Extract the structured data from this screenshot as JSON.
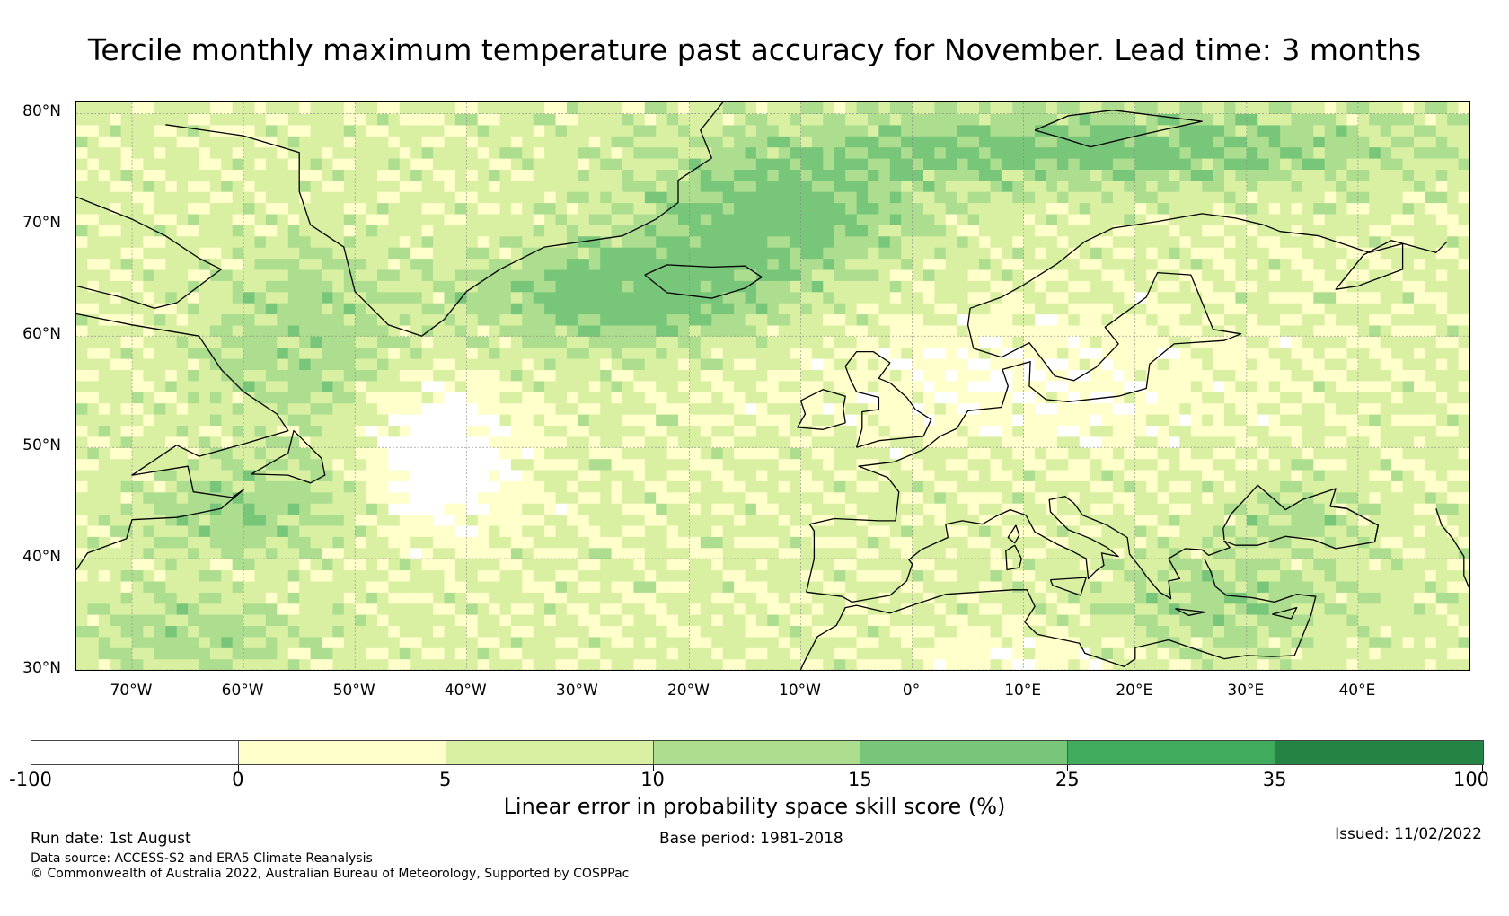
{
  "title": "Tercile monthly maximum temperature past accuracy for November. Lead time: 3 months",
  "map": {
    "lat_labels": [
      {
        "text": "80°N",
        "lat": 80
      },
      {
        "text": "70°N",
        "lat": 70
      },
      {
        "text": "60°N",
        "lat": 60
      },
      {
        "text": "50°N",
        "lat": 50
      },
      {
        "text": "40°N",
        "lat": 40
      },
      {
        "text": "30°N",
        "lat": 30
      }
    ],
    "lon_labels": [
      {
        "text": "70°W",
        "lon": -70
      },
      {
        "text": "60°W",
        "lon": -60
      },
      {
        "text": "50°W",
        "lon": -50
      },
      {
        "text": "40°W",
        "lon": -40
      },
      {
        "text": "30°W",
        "lon": -30
      },
      {
        "text": "20°W",
        "lon": -20
      },
      {
        "text": "10°W",
        "lon": -10
      },
      {
        "text": "0°",
        "lon": 0
      },
      {
        "text": "10°E",
        "lon": 10
      },
      {
        "text": "20°E",
        "lon": 20
      },
      {
        "text": "30°E",
        "lon": 30
      },
      {
        "text": "40°E",
        "lon": 40
      }
    ],
    "lon_range": [
      -75,
      50
    ],
    "lat_range": [
      30,
      81
    ],
    "grid": true
  },
  "colorbar": {
    "title": "Linear error in probability space skill score (%)",
    "tick_labels": [
      "-100",
      "0",
      "5",
      "10",
      "15",
      "25",
      "35",
      "100"
    ],
    "colors": [
      "#ffffff",
      "#ffffcc",
      "#d9f0a3",
      "#addd8e",
      "#78c679",
      "#41ab5d",
      "#238443"
    ]
  },
  "footer": {
    "run_date": "Run date: 1st August",
    "base_period": "Base period: 1981-2018",
    "issued": "Issued: 11/02/2022",
    "data_source": "Data source: ACCESS-S2 and ERA5 Climate Reanalysis",
    "copyright": "© Commonwealth of Australia 2022, Australian Bureau of Meteorology, Supported by COSPPac"
  }
}
